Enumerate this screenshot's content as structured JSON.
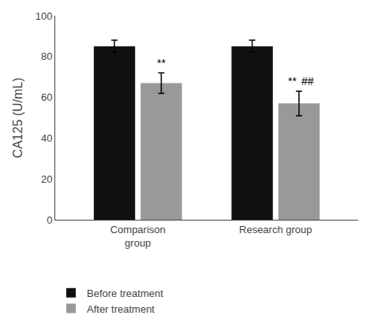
{
  "chart_data": {
    "type": "bar",
    "categories": [
      "Comparison\ngroup",
      "Research group"
    ],
    "series": [
      {
        "name": "Before treatment",
        "color": "#111111",
        "values": [
          85,
          85
        ],
        "errors": [
          3,
          3
        ]
      },
      {
        "name": "After treatment",
        "color": "#999999",
        "values": [
          67,
          57
        ],
        "errors": [
          5,
          6
        ]
      }
    ],
    "ylabel": "CA125 (U/mL)",
    "ylim": [
      0,
      100
    ],
    "yticks": [
      0,
      20,
      40,
      60,
      80,
      100
    ],
    "grid": false,
    "legend": "bottom",
    "annotations": [
      {
        "text": "**",
        "category": "Comparison\ngroup",
        "series": "After treatment"
      },
      {
        "text": "**",
        "category": "Research group",
        "series": "After treatment"
      },
      {
        "text": "##",
        "category": "Research group",
        "series": "After treatment"
      }
    ]
  }
}
